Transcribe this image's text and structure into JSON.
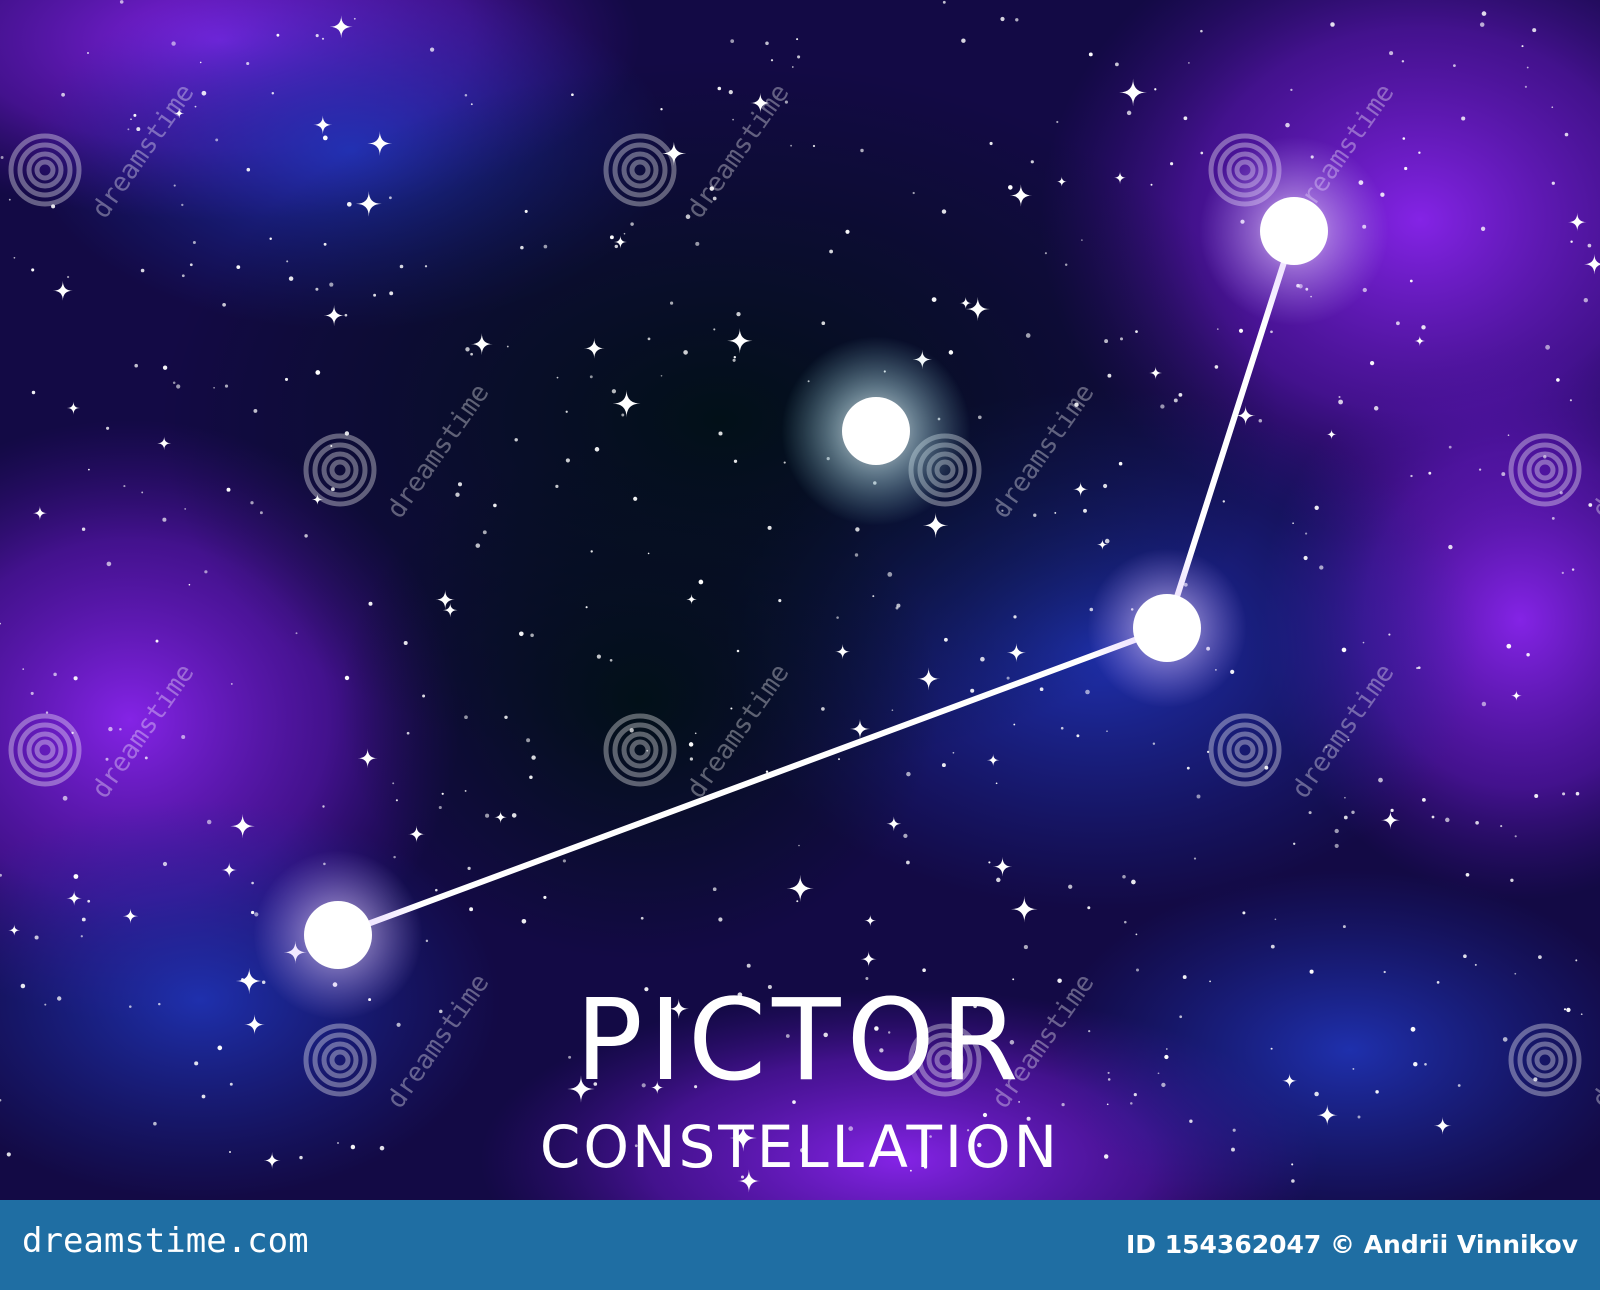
{
  "title": {
    "main": "PICTOR",
    "sub": "CONSTELLATION"
  },
  "footer": {
    "site": "dreamstime.com",
    "credit": "ID 154362047 © Andrii Vinnikov"
  },
  "watermark": {
    "text": "dreamstime",
    "icon": "spiral-logo-icon"
  },
  "colors": {
    "sky_dark": "#02081a",
    "nebula_violet": "#7a20e0",
    "nebula_blue": "#1e2fa8",
    "star": "#ffffff",
    "footer_band": "#1f6ea3"
  }
}
